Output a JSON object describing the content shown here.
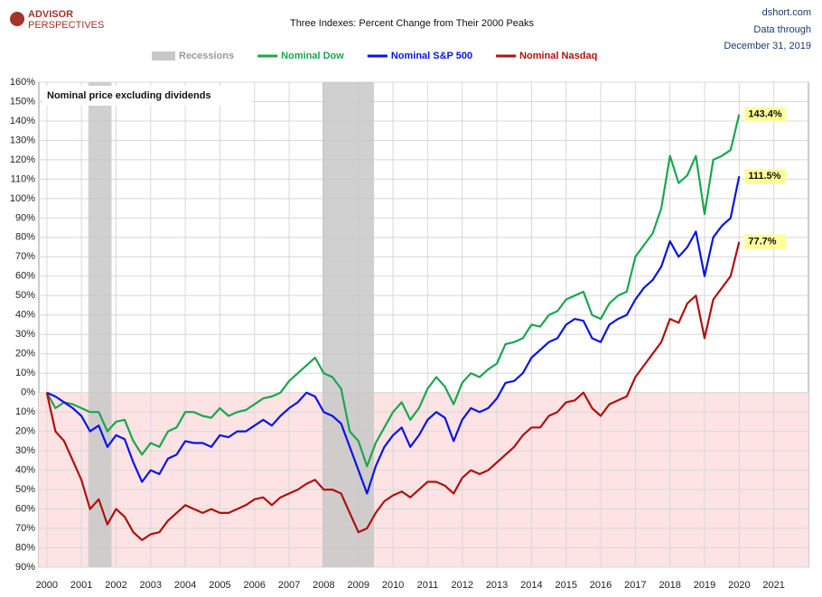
{
  "chart_data": {
    "type": "line",
    "title": "Three Indexes: Percent Change from Their 2000 Peaks",
    "source": "dshort.com",
    "date_note": [
      "Data through",
      "December 31, 2019"
    ],
    "logo": [
      "ADVISOR",
      "PERSPECTIVES"
    ],
    "annotation": "Nominal price excluding dividends",
    "recessions": {
      "name": "Recessions",
      "color": "#c8c8c8",
      "spans": [
        [
          2001.2,
          2001.87
        ],
        [
          2007.96,
          2009.45
        ]
      ]
    },
    "negative_shade": "#fde3e3",
    "grid": true,
    "xlim": [
      1999.77,
      2022
    ],
    "xticks": [
      2000,
      2001,
      2002,
      2003,
      2004,
      2005,
      2006,
      2007,
      2008,
      2009,
      2010,
      2011,
      2012,
      2013,
      2014,
      2015,
      2016,
      2017,
      2018,
      2019,
      2020,
      2021
    ],
    "ylim": [
      -90,
      160
    ],
    "yticks": [
      {
        "value": -90,
        "label": "90%"
      },
      {
        "value": -80,
        "label": "80%"
      },
      {
        "value": -70,
        "label": "70%"
      },
      {
        "value": -60,
        "label": "60%"
      },
      {
        "value": -50,
        "label": "50%"
      },
      {
        "value": -40,
        "label": "40%"
      },
      {
        "value": -30,
        "label": "30%"
      },
      {
        "value": -20,
        "label": "20%"
      },
      {
        "value": -10,
        "label": "10%"
      },
      {
        "value": 0,
        "label": "0%"
      },
      {
        "value": 10,
        "label": "10%"
      },
      {
        "value": 20,
        "label": "20%"
      },
      {
        "value": 30,
        "label": "30%"
      },
      {
        "value": 40,
        "label": "40%"
      },
      {
        "value": 50,
        "label": "50%"
      },
      {
        "value": 60,
        "label": "60%"
      },
      {
        "value": 70,
        "label": "70%"
      },
      {
        "value": 80,
        "label": "80%"
      },
      {
        "value": 90,
        "label": "90%"
      },
      {
        "value": 100,
        "label": "100%"
      },
      {
        "value": 110,
        "label": "110%"
      },
      {
        "value": 120,
        "label": "120%"
      },
      {
        "value": 130,
        "label": "130%"
      },
      {
        "value": 140,
        "label": "140%"
      },
      {
        "value": 150,
        "label": "150%"
      },
      {
        "value": 160,
        "label": "160%"
      }
    ],
    "x": [
      2000,
      2000.25,
      2000.5,
      2000.75,
      2001,
      2001.25,
      2001.5,
      2001.75,
      2002,
      2002.25,
      2002.5,
      2002.75,
      2003,
      2003.25,
      2003.5,
      2003.75,
      2004,
      2004.25,
      2004.5,
      2004.75,
      2005,
      2005.25,
      2005.5,
      2005.75,
      2006,
      2006.25,
      2006.5,
      2006.75,
      2007,
      2007.25,
      2007.5,
      2007.75,
      2008,
      2008.25,
      2008.5,
      2008.75,
      2009,
      2009.25,
      2009.5,
      2009.75,
      2010,
      2010.25,
      2010.5,
      2010.75,
      2011,
      2011.25,
      2011.5,
      2011.75,
      2012,
      2012.25,
      2012.5,
      2012.75,
      2013,
      2013.25,
      2013.5,
      2013.75,
      2014,
      2014.25,
      2014.5,
      2014.75,
      2015,
      2015.25,
      2015.5,
      2015.75,
      2016,
      2016.25,
      2016.5,
      2016.75,
      2017,
      2017.25,
      2017.5,
      2017.75,
      2018,
      2018.25,
      2018.5,
      2018.75,
      2019,
      2019.25,
      2019.5,
      2019.75,
      2020
    ],
    "series": [
      {
        "name": "Nominal Dow",
        "color": "#1aa650",
        "end_label": {
          "value": 143.4,
          "label": "143.4%"
        },
        "values": [
          0,
          -8,
          -5,
          -6,
          -8,
          -10,
          -10,
          -20,
          -15,
          -14,
          -25,
          -32,
          -26,
          -28,
          -20,
          -18,
          -10,
          -10,
          -12,
          -13,
          -8,
          -12,
          -10,
          -9,
          -6,
          -3,
          -2,
          0,
          6,
          10,
          14,
          18,
          10,
          8,
          2,
          -20,
          -25,
          -38,
          -26,
          -18,
          -10,
          -5,
          -14,
          -8,
          2,
          8,
          3,
          -6,
          5,
          10,
          8,
          12,
          15,
          25,
          26,
          28,
          35,
          34,
          40,
          42,
          48,
          50,
          52,
          40,
          38,
          46,
          50,
          52,
          70,
          76,
          82,
          95,
          122,
          108,
          112,
          122,
          92,
          120,
          122,
          125,
          143.4
        ]
      },
      {
        "name": "Nominal S&P 500",
        "color": "#0a14e6",
        "end_label": {
          "value": 111.5,
          "label": "111.5%"
        },
        "values": [
          0,
          -2,
          -5,
          -8,
          -12,
          -20,
          -17,
          -28,
          -22,
          -24,
          -36,
          -46,
          -40,
          -42,
          -34,
          -32,
          -25,
          -26,
          -26,
          -28,
          -22,
          -23,
          -20,
          -20,
          -17,
          -14,
          -17,
          -12,
          -8,
          -5,
          0,
          -2,
          -10,
          -12,
          -16,
          -28,
          -40,
          -52,
          -38,
          -28,
          -22,
          -18,
          -28,
          -22,
          -14,
          -10,
          -13,
          -25,
          -14,
          -8,
          -10,
          -8,
          -3,
          5,
          6,
          10,
          18,
          22,
          26,
          28,
          35,
          38,
          37,
          28,
          26,
          35,
          38,
          40,
          48,
          54,
          58,
          65,
          78,
          70,
          75,
          83,
          60,
          80,
          86,
          90,
          111.5
        ]
      },
      {
        "name": "Nominal Nasdaq",
        "color": "#b01010",
        "end_label": {
          "value": 77.7,
          "label": "77.7%"
        },
        "values": [
          0,
          -20,
          -25,
          -35,
          -45,
          -60,
          -55,
          -68,
          -60,
          -64,
          -72,
          -76,
          -73,
          -72,
          -66,
          -62,
          -58,
          -60,
          -62,
          -60,
          -62,
          -62,
          -60,
          -58,
          -55,
          -54,
          -58,
          -54,
          -52,
          -50,
          -47,
          -45,
          -50,
          -50,
          -52,
          -62,
          -72,
          -70,
          -62,
          -56,
          -53,
          -51,
          -54,
          -50,
          -46,
          -46,
          -48,
          -52,
          -44,
          -40,
          -42,
          -40,
          -36,
          -32,
          -28,
          -22,
          -18,
          -18,
          -12,
          -10,
          -5,
          -4,
          0,
          -8,
          -12,
          -6,
          -4,
          -2,
          8,
          14,
          20,
          26,
          38,
          36,
          46,
          50,
          28,
          48,
          54,
          60,
          77.7
        ]
      }
    ]
  }
}
